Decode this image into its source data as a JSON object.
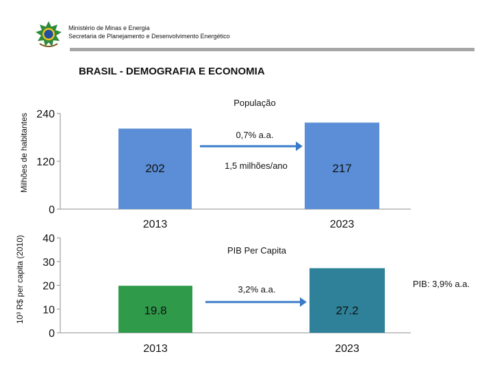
{
  "header": {
    "ministry": "Ministério de Minas e Energia",
    "secretariat": "Secretaria de Planejamento e Desenvolvimento Energético",
    "emblem_icon": "brazil-coat-of-arms-icon"
  },
  "page_title": "BRASIL - DEMOGRAFIA E ECONOMIA",
  "colors": {
    "population_bar": "#5b8ed6",
    "pib_bar_2013": "#2e9a4a",
    "pib_bar_2023": "#2e8198",
    "arrow": "#3a7bc8",
    "rule": "#a6a6a6"
  },
  "chart_data": [
    {
      "type": "bar",
      "title": "População",
      "categories": [
        "2013",
        "2023"
      ],
      "values": [
        202,
        217
      ],
      "value_labels": [
        "202",
        "217"
      ],
      "ylabel": "Milhões de habitantes",
      "ylim": [
        0,
        240
      ],
      "yticks": [
        "0",
        "120",
        "240"
      ],
      "annotations": [
        "0,7% a.a.",
        "1,5 milhões/ano"
      ]
    },
    {
      "type": "bar",
      "title": "PIB Per Capita",
      "categories": [
        "2013",
        "2023"
      ],
      "values": [
        19.8,
        27.2
      ],
      "value_labels": [
        "19.8",
        "27.2"
      ],
      "ylabel": "10³ R$ per capita (2010)",
      "ylim": [
        0,
        40
      ],
      "yticks": [
        "0",
        "10",
        "20",
        "30",
        "40"
      ],
      "annotations": [
        "3,2% a.a.",
        "PIB: 3,9% a.a."
      ]
    }
  ]
}
